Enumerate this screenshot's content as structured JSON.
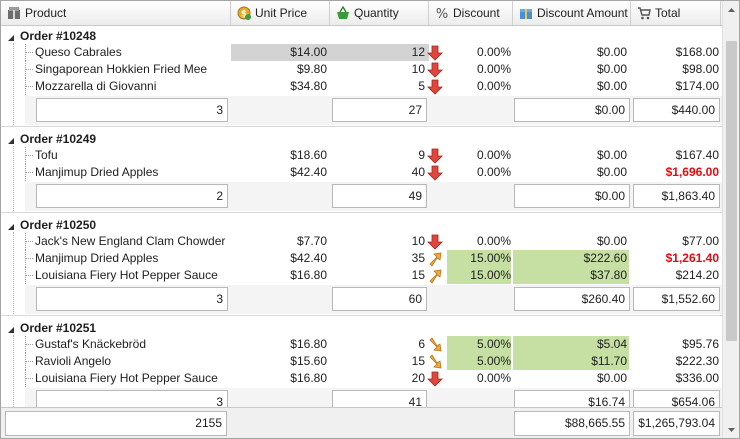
{
  "columns": [
    {
      "label": "Product",
      "icon": "product-icon"
    },
    {
      "label": "Unit Price",
      "icon": "money-icon"
    },
    {
      "label": "Quantity",
      "icon": "basket-icon"
    },
    {
      "label": "Discount",
      "icon": "percent-icon"
    },
    {
      "label": "Discount Amount",
      "icon": "gift-icon"
    },
    {
      "label": "Total",
      "icon": "cart-icon"
    }
  ],
  "colors": {
    "highlight_green": "#c6e0a4",
    "selected_gray": "#d3d3d3",
    "negative_red": "#e8090a",
    "arrow_down": "#e0463b",
    "arrow_orange": "#f2a935"
  },
  "groups": [
    {
      "title": "Order #10248",
      "rows": [
        {
          "product": "Queso Cabrales",
          "unit_price": "$14.00",
          "quantity": "12",
          "trend": "down",
          "discount": "0.00%",
          "discount_amount": "$0.00",
          "total": "$168.00",
          "selected": true
        },
        {
          "product": "Singaporean Hokkien Fried Mee",
          "unit_price": "$9.80",
          "quantity": "10",
          "trend": "down",
          "discount": "0.00%",
          "discount_amount": "$0.00",
          "total": "$98.00"
        },
        {
          "product": "Mozzarella di Giovanni",
          "unit_price": "$34.80",
          "quantity": "5",
          "trend": "down",
          "discount": "0.00%",
          "discount_amount": "$0.00",
          "total": "$174.00"
        }
      ],
      "summary": {
        "count": "3",
        "quantity": "27",
        "discount_amount": "$0.00",
        "total": "$440.00"
      }
    },
    {
      "title": "Order #10249",
      "rows": [
        {
          "product": "Tofu",
          "unit_price": "$18.60",
          "quantity": "9",
          "trend": "down",
          "discount": "0.00%",
          "discount_amount": "$0.00",
          "total": "$167.40"
        },
        {
          "product": "Manjimup Dried Apples",
          "unit_price": "$42.40",
          "quantity": "40",
          "trend": "down",
          "discount": "0.00%",
          "discount_amount": "$0.00",
          "total": "$1,696.00",
          "total_red": true
        }
      ],
      "summary": {
        "count": "2",
        "quantity": "49",
        "discount_amount": "$0.00",
        "total": "$1,863.40"
      }
    },
    {
      "title": "Order #10250",
      "rows": [
        {
          "product": "Jack's New England Clam Chowder",
          "unit_price": "$7.70",
          "quantity": "10",
          "trend": "down",
          "discount": "0.00%",
          "discount_amount": "$0.00",
          "total": "$77.00"
        },
        {
          "product": "Manjimup Dried Apples",
          "unit_price": "$42.40",
          "quantity": "35",
          "trend": "up-right",
          "discount": "15.00%",
          "discount_amount": "$222.60",
          "total": "$1,261.40",
          "total_red": true,
          "green": true
        },
        {
          "product": "Louisiana Fiery Hot Pepper Sauce",
          "unit_price": "$16.80",
          "quantity": "15",
          "trend": "up-right",
          "discount": "15.00%",
          "discount_amount": "$37.80",
          "total": "$214.20",
          "green": true
        }
      ],
      "summary": {
        "count": "3",
        "quantity": "60",
        "discount_amount": "$260.40",
        "total": "$1,552.60"
      }
    },
    {
      "title": "Order #10251",
      "rows": [
        {
          "product": "Gustaf's Knäckebröd",
          "unit_price": "$16.80",
          "quantity": "6",
          "trend": "down-right",
          "discount": "5.00%",
          "discount_amount": "$5.04",
          "total": "$95.76",
          "green": true
        },
        {
          "product": "Ravioli Angelo",
          "unit_price": "$15.60",
          "quantity": "15",
          "trend": "down-right",
          "discount": "5.00%",
          "discount_amount": "$11.70",
          "total": "$222.30",
          "green": true
        },
        {
          "product": "Louisiana Fiery Hot Pepper Sauce",
          "unit_price": "$16.80",
          "quantity": "20",
          "trend": "down",
          "discount": "0.00%",
          "discount_amount": "$0.00",
          "total": "$336.00"
        }
      ],
      "summary": {
        "count": "3",
        "quantity": "41",
        "discount_amount": "$16.74",
        "total": "$654.06"
      }
    }
  ],
  "footer": {
    "count": "2155",
    "discount_amount": "$88,665.55",
    "total": "$1,265,793.04"
  }
}
